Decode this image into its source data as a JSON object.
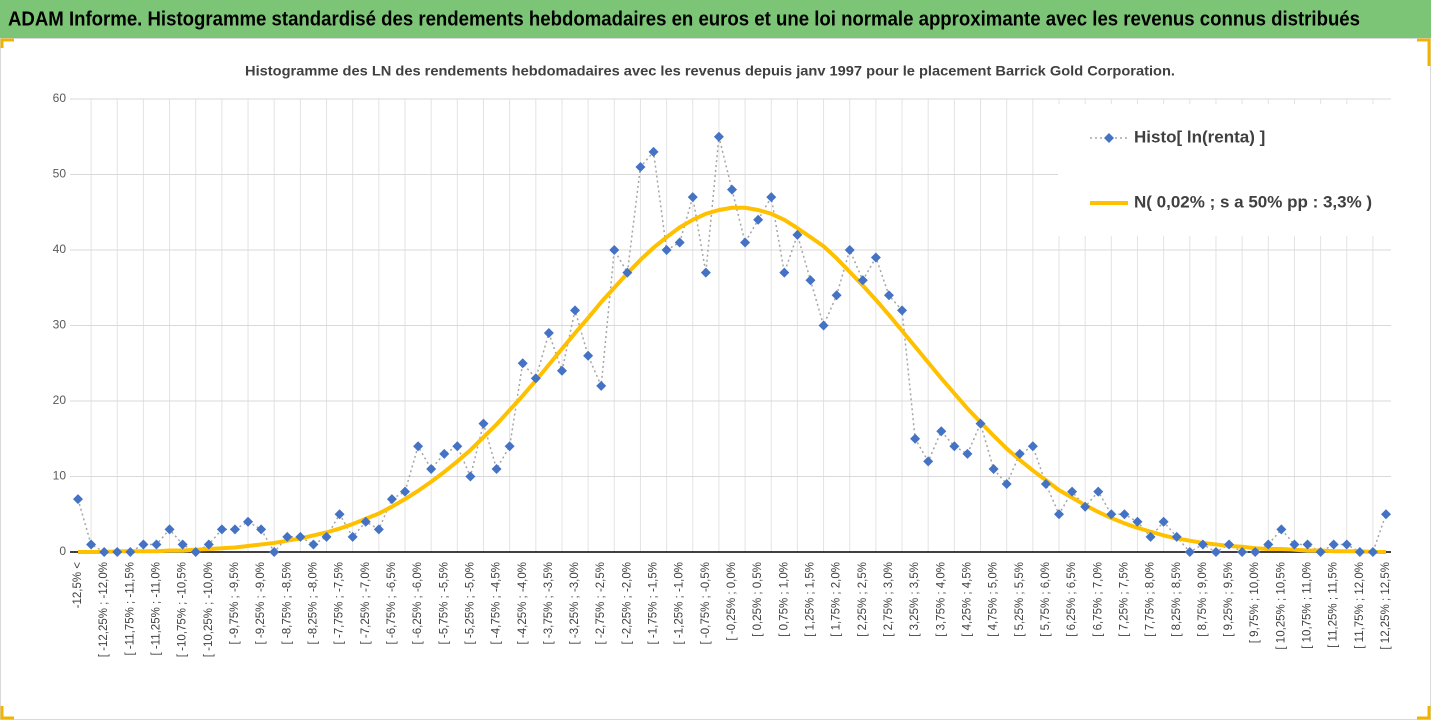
{
  "chart_data": {
    "type": "line",
    "title": "ADAM Informe. Histogramme standardisé des rendements hebdomadaires en euros et une loi normale approximante avec les revenus connus distribués",
    "subtitle": "Histogramme des LN des rendements hebdomadaires avec les revenus depuis janv 1997 pour le placement Barrick Gold Corporation.",
    "categories": [
      "-12,5% <",
      null,
      "[ -12,25% ; -12,0%",
      null,
      "[ -11,75% ; -11,5%",
      null,
      "[ -11,25% ; -11,0%",
      null,
      "[ -10,75% ; -10,5%",
      null,
      "[ -10,25% ; -10,0%",
      null,
      "[ -9,75% ; -9,5%",
      null,
      "[ -9,25% ; -9,0%",
      null,
      "[ -8,75% ; -8,5%",
      null,
      "[ -8,25% ; -8,0%",
      null,
      "[ -7,75% ; -7,5%",
      null,
      "[ -7,25% ; -7,0%",
      null,
      "[ -6,75% ; -6,5%",
      null,
      "[ -6,25% ; -6,0%",
      null,
      "[ -5,75% ; -5,5%",
      null,
      "[ -5,25% ; -5,0%",
      null,
      "[ -4,75% ; -4,5%",
      null,
      "[ -4,25% ; -4,0%",
      null,
      "[ -3,75% ; -3,5%",
      null,
      "[ -3,25% ; -3,0%",
      null,
      "[ -2,75% ; -2,5%",
      null,
      "[ -2,25% ; -2,0%",
      null,
      "[ -1,75% ; -1,5%",
      null,
      "[ -1,25% ; -1,0%",
      null,
      "[ -0,75% ; -0,5%",
      null,
      "[ -0,25% ; 0,0%",
      null,
      "[ 0,25% ; 0,5%",
      null,
      "[ 0,75% ; 1,0%",
      null,
      "[ 1,25% ; 1,5%",
      null,
      "[ 1,75% ; 2,0%",
      null,
      "[ 2,25% ; 2,5%",
      null,
      "[ 2,75% ; 3,0%",
      null,
      "[ 3,25% ; 3,5%",
      null,
      "[ 3,75% ; 4,0%",
      null,
      "[ 4,25% ; 4,5%",
      null,
      "[ 4,75% ; 5,0%",
      null,
      "[ 5,25% ; 5,5%",
      null,
      "[ 5,75% ; 6,0%",
      null,
      "[ 6,25% ; 6,5%",
      null,
      "[ 6,75% ; 7,0%",
      null,
      "[ 7,25% ; 7,5%",
      null,
      "[ 7,75% ; 8,0%",
      null,
      "[ 8,25% ; 8,5%",
      null,
      "[ 8,75% ; 9,0%",
      null,
      "[ 9,25% ; 9,5%",
      null,
      "[ 9,75% ; 10,0%",
      null,
      "[ 10,25% ; 10,5%",
      null,
      "[ 10,75% ; 11,0%",
      null,
      "[ 11,25% ; 11,5%",
      null,
      "[ 11,75% ; 12,0%",
      null,
      "[ 12,25% ; 12,5%"
    ],
    "series": [
      {
        "name": "Histo[ ln(renta) ]",
        "color": "#4472c4",
        "line_color": "#a5a5a5",
        "dashed": true,
        "marker": "diamond",
        "values": [
          7,
          1,
          0,
          0,
          0,
          1,
          1,
          3,
          1,
          0,
          1,
          3,
          3,
          4,
          3,
          0,
          2,
          2,
          1,
          2,
          5,
          2,
          4,
          3,
          7,
          8,
          14,
          11,
          13,
          14,
          10,
          17,
          11,
          14,
          25,
          23,
          29,
          24,
          32,
          26,
          22,
          40,
          37,
          51,
          53,
          40,
          41,
          47,
          37,
          55,
          48,
          41,
          44,
          47,
          37,
          42,
          36,
          30,
          34,
          40,
          36,
          39,
          34,
          32,
          15,
          12,
          16,
          14,
          13,
          17,
          11,
          9,
          13,
          14,
          9,
          5,
          8,
          6,
          8,
          5,
          5,
          4,
          2,
          4,
          2,
          0,
          1,
          0,
          1,
          0,
          0,
          1,
          3,
          1,
          1,
          0,
          1,
          1,
          0,
          0,
          5
        ]
      },
      {
        "name": "N( 0,02% ; s a 50% pp : 3,3% )",
        "color": "#ffc000",
        "line_color": "#ffc000",
        "dashed": false,
        "marker": null,
        "values": [
          0.0,
          0.0,
          0.0,
          0.1,
          0.1,
          0.1,
          0.1,
          0.2,
          0.2,
          0.3,
          0.4,
          0.5,
          0.6,
          0.8,
          1.0,
          1.2,
          1.5,
          1.8,
          2.2,
          2.6,
          3.1,
          3.7,
          4.4,
          5.1,
          6.0,
          7.0,
          8.1,
          9.3,
          10.6,
          12.0,
          13.5,
          15.2,
          16.9,
          18.8,
          20.7,
          22.7,
          24.8,
          26.9,
          29.0,
          31.0,
          33.1,
          35.0,
          36.9,
          38.7,
          40.3,
          41.7,
          43.0,
          44.0,
          44.8,
          45.3,
          45.6,
          45.6,
          45.3,
          44.8,
          44.0,
          42.9,
          41.7,
          40.5,
          38.9,
          37.1,
          35.3,
          33.4,
          31.4,
          29.3,
          27.2,
          25.1,
          23.0,
          21.0,
          19.0,
          17.2,
          15.4,
          13.7,
          12.2,
          10.8,
          9.5,
          8.2,
          7.2,
          6.2,
          5.3,
          4.5,
          3.8,
          3.2,
          2.7,
          2.2,
          1.8,
          1.5,
          1.2,
          1.0,
          0.8,
          0.7,
          0.5,
          0.4,
          0.4,
          0.3,
          0.2,
          0.2,
          0.1,
          0.1,
          0.1,
          0.0,
          0.0
        ]
      }
    ],
    "ylim": [
      0,
      60
    ],
    "yticks": [
      0,
      10,
      20,
      30,
      40,
      50,
      60
    ],
    "grid": true,
    "legend": "upper right"
  }
}
